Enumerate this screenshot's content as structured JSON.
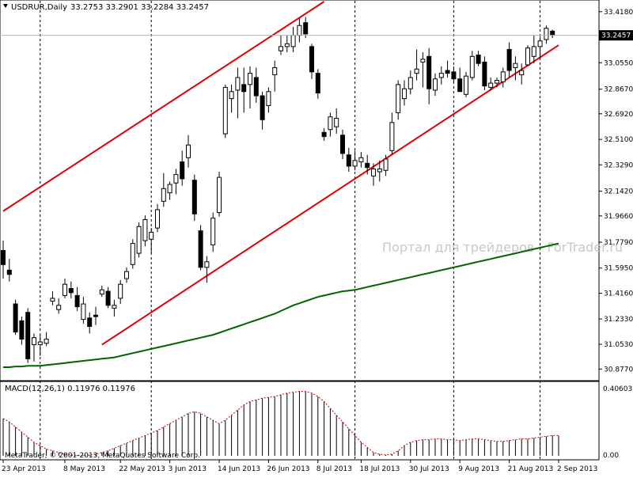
{
  "header": {
    "symbol_label": "USDRUR,Daily",
    "ohlc_label": "33.2753 33.2901 33.2284 33.2457"
  },
  "main_pane": {
    "current_price": "33.2457",
    "price_ticks": [
      "33.4180",
      "33.2457",
      "33.0550",
      "32.8670",
      "32.6920",
      "32.5100",
      "32.3290",
      "32.1420",
      "31.9660",
      "31.7790",
      "31.5950",
      "31.4160",
      "31.2330",
      "31.0530",
      "30.8770"
    ],
    "watermark": "Портал для трейдеров - ForTrader.ru"
  },
  "macd_pane": {
    "label": "MACD(12,26,1) 0.11976 0.11976",
    "ticks": [
      "0.40603",
      "0.00"
    ],
    "copyright": "MetaTrader, © 2001-2013, MetaQuotes Software Corp."
  },
  "time_axis": {
    "labels": [
      "23 Apr 2013",
      "8 May 2013",
      "22 May 2013",
      "3 Jun 2013",
      "14 Jun 2013",
      "26 Jun 2013",
      "8 Jul 2013",
      "18 Jul 2013",
      "30 Jul 2013",
      "9 Aug 2013",
      "21 Aug 2013",
      "2 Sep 2013"
    ]
  },
  "colors": {
    "bull_fill": "#ffffff",
    "bear_fill": "#000000",
    "channel": "#e00000",
    "moving_average": "#006400",
    "macd_hist": "#000000",
    "macd_signal": "#c00000",
    "current_price_box": "#000000"
  },
  "chart_data": {
    "type": "candlestick",
    "symbol": "USDRUR",
    "timeframe": "Daily",
    "ylim": [
      30.8,
      33.49
    ],
    "candles": [
      {
        "o": 31.72,
        "h": 31.79,
        "l": 31.52,
        "c": 31.62
      },
      {
        "o": 31.58,
        "h": 31.66,
        "l": 31.5,
        "c": 31.55
      },
      {
        "o": 31.34,
        "h": 31.37,
        "l": 31.12,
        "c": 31.14
      },
      {
        "o": 31.22,
        "h": 31.25,
        "l": 31.05,
        "c": 31.09
      },
      {
        "o": 31.28,
        "h": 31.31,
        "l": 30.92,
        "c": 30.95
      },
      {
        "o": 31.05,
        "h": 31.13,
        "l": 30.93,
        "c": 31.1
      },
      {
        "o": 31.05,
        "h": 31.12,
        "l": 30.97,
        "c": 31.07
      },
      {
        "o": 31.06,
        "h": 31.14,
        "l": 31.04,
        "c": 31.09
      },
      {
        "o": 31.36,
        "h": 31.43,
        "l": 31.33,
        "c": 31.38
      },
      {
        "o": 31.3,
        "h": 31.38,
        "l": 31.27,
        "c": 31.33
      },
      {
        "o": 31.4,
        "h": 31.52,
        "l": 31.38,
        "c": 31.48
      },
      {
        "o": 31.45,
        "h": 31.5,
        "l": 31.38,
        "c": 31.42
      },
      {
        "o": 31.4,
        "h": 31.46,
        "l": 31.29,
        "c": 31.32
      },
      {
        "o": 31.23,
        "h": 31.39,
        "l": 31.2,
        "c": 31.34
      },
      {
        "o": 31.24,
        "h": 31.28,
        "l": 31.13,
        "c": 31.18
      },
      {
        "o": 31.26,
        "h": 31.32,
        "l": 31.19,
        "c": 31.25
      },
      {
        "o": 31.41,
        "h": 31.47,
        "l": 31.39,
        "c": 31.44
      },
      {
        "o": 31.43,
        "h": 31.46,
        "l": 31.31,
        "c": 31.33
      },
      {
        "o": 31.31,
        "h": 31.37,
        "l": 31.25,
        "c": 31.33
      },
      {
        "o": 31.38,
        "h": 31.51,
        "l": 31.34,
        "c": 31.48
      },
      {
        "o": 31.52,
        "h": 31.6,
        "l": 31.49,
        "c": 31.57
      },
      {
        "o": 31.62,
        "h": 31.8,
        "l": 31.59,
        "c": 31.77
      },
      {
        "o": 31.7,
        "h": 31.92,
        "l": 31.67,
        "c": 31.89
      },
      {
        "o": 31.79,
        "h": 31.97,
        "l": 31.75,
        "c": 31.94
      },
      {
        "o": 31.8,
        "h": 31.88,
        "l": 31.7,
        "c": 31.85
      },
      {
        "o": 31.88,
        "h": 32.05,
        "l": 31.85,
        "c": 32.01
      },
      {
        "o": 32.07,
        "h": 32.27,
        "l": 32.03,
        "c": 32.16
      },
      {
        "o": 32.13,
        "h": 32.21,
        "l": 32.08,
        "c": 32.19
      },
      {
        "o": 32.2,
        "h": 32.3,
        "l": 32.12,
        "c": 32.26
      },
      {
        "o": 32.35,
        "h": 32.43,
        "l": 32.18,
        "c": 32.23
      },
      {
        "o": 32.38,
        "h": 32.54,
        "l": 32.31,
        "c": 32.47
      },
      {
        "o": 32.22,
        "h": 32.26,
        "l": 31.93,
        "c": 31.98
      },
      {
        "o": 31.86,
        "h": 31.9,
        "l": 31.58,
        "c": 31.6
      },
      {
        "o": 31.6,
        "h": 31.68,
        "l": 31.49,
        "c": 31.64
      },
      {
        "o": 31.76,
        "h": 31.99,
        "l": 31.71,
        "c": 31.95
      },
      {
        "o": 31.99,
        "h": 32.28,
        "l": 31.96,
        "c": 32.24
      },
      {
        "o": 32.55,
        "h": 32.9,
        "l": 32.52,
        "c": 32.88
      },
      {
        "o": 32.8,
        "h": 32.9,
        "l": 32.7,
        "c": 32.85
      },
      {
        "o": 32.86,
        "h": 33.02,
        "l": 32.66,
        "c": 32.95
      },
      {
        "o": 32.9,
        "h": 33.02,
        "l": 32.7,
        "c": 32.85
      },
      {
        "o": 32.9,
        "h": 33.03,
        "l": 32.73,
        "c": 32.98
      },
      {
        "o": 32.95,
        "h": 33.02,
        "l": 32.77,
        "c": 32.82
      },
      {
        "o": 32.82,
        "h": 32.85,
        "l": 32.58,
        "c": 32.65
      },
      {
        "o": 32.75,
        "h": 32.88,
        "l": 32.7,
        "c": 32.85
      },
      {
        "o": 32.97,
        "h": 33.07,
        "l": 32.85,
        "c": 33.02
      },
      {
        "o": 33.14,
        "h": 33.25,
        "l": 33.11,
        "c": 33.17
      },
      {
        "o": 33.17,
        "h": 33.25,
        "l": 33.13,
        "c": 33.19
      },
      {
        "o": 33.17,
        "h": 33.31,
        "l": 33.13,
        "c": 33.25
      },
      {
        "o": 33.25,
        "h": 33.37,
        "l": 33.2,
        "c": 33.32
      },
      {
        "o": 33.34,
        "h": 33.38,
        "l": 33.23,
        "c": 33.26
      },
      {
        "o": 33.17,
        "h": 33.19,
        "l": 32.94,
        "c": 32.99
      },
      {
        "o": 32.98,
        "h": 33.01,
        "l": 32.8,
        "c": 32.84
      },
      {
        "o": 32.56,
        "h": 32.59,
        "l": 32.5,
        "c": 32.53
      },
      {
        "o": 32.58,
        "h": 32.7,
        "l": 32.53,
        "c": 32.67
      },
      {
        "o": 32.6,
        "h": 32.73,
        "l": 32.55,
        "c": 32.66
      },
      {
        "o": 32.54,
        "h": 32.58,
        "l": 32.37,
        "c": 32.41
      },
      {
        "o": 32.4,
        "h": 32.45,
        "l": 32.28,
        "c": 32.32
      },
      {
        "o": 32.32,
        "h": 32.43,
        "l": 32.29,
        "c": 32.36
      },
      {
        "o": 32.35,
        "h": 32.42,
        "l": 32.31,
        "c": 32.38
      },
      {
        "o": 32.34,
        "h": 32.4,
        "l": 32.26,
        "c": 32.31
      },
      {
        "o": 32.25,
        "h": 32.34,
        "l": 32.18,
        "c": 32.3
      },
      {
        "o": 32.28,
        "h": 32.36,
        "l": 32.21,
        "c": 32.3
      },
      {
        "o": 32.29,
        "h": 32.4,
        "l": 32.25,
        "c": 32.37
      },
      {
        "o": 32.43,
        "h": 32.7,
        "l": 32.4,
        "c": 32.63
      },
      {
        "o": 32.7,
        "h": 32.93,
        "l": 32.65,
        "c": 32.9
      },
      {
        "o": 32.8,
        "h": 32.93,
        "l": 32.75,
        "c": 32.87
      },
      {
        "o": 32.87,
        "h": 33.0,
        "l": 32.83,
        "c": 32.95
      },
      {
        "o": 32.98,
        "h": 33.15,
        "l": 32.93,
        "c": 33.01
      },
      {
        "o": 33.06,
        "h": 33.13,
        "l": 32.88,
        "c": 33.08
      },
      {
        "o": 33.1,
        "h": 33.16,
        "l": 32.76,
        "c": 32.87
      },
      {
        "o": 32.86,
        "h": 32.98,
        "l": 32.82,
        "c": 32.94
      },
      {
        "o": 32.95,
        "h": 33.03,
        "l": 32.9,
        "c": 32.98
      },
      {
        "o": 33.0,
        "h": 33.07,
        "l": 32.95,
        "c": 32.98
      },
      {
        "o": 32.99,
        "h": 33.03,
        "l": 32.91,
        "c": 32.94
      },
      {
        "o": 32.94,
        "h": 33.02,
        "l": 32.85,
        "c": 32.85
      },
      {
        "o": 32.83,
        "h": 32.99,
        "l": 32.81,
        "c": 32.96
      },
      {
        "o": 32.95,
        "h": 33.14,
        "l": 32.93,
        "c": 33.1
      },
      {
        "o": 33.11,
        "h": 33.14,
        "l": 33.03,
        "c": 33.05
      },
      {
        "o": 33.06,
        "h": 33.1,
        "l": 32.86,
        "c": 32.89
      },
      {
        "o": 32.88,
        "h": 32.95,
        "l": 32.86,
        "c": 32.91
      },
      {
        "o": 32.91,
        "h": 32.95,
        "l": 32.88,
        "c": 32.93
      },
      {
        "o": 32.92,
        "h": 33.02,
        "l": 32.88,
        "c": 32.99
      },
      {
        "o": 33.15,
        "h": 33.2,
        "l": 32.95,
        "c": 33.0
      },
      {
        "o": 33.02,
        "h": 33.1,
        "l": 32.93,
        "c": 33.05
      },
      {
        "o": 32.97,
        "h": 33.05,
        "l": 32.9,
        "c": 33.0
      },
      {
        "o": 33.04,
        "h": 33.18,
        "l": 33.03,
        "c": 33.16
      },
      {
        "o": 33.1,
        "h": 33.25,
        "l": 33.05,
        "c": 33.17
      },
      {
        "o": 33.17,
        "h": 33.24,
        "l": 33.08,
        "c": 33.21
      },
      {
        "o": 33.22,
        "h": 33.32,
        "l": 33.19,
        "c": 33.3
      },
      {
        "o": 33.28,
        "h": 33.29,
        "l": 33.23,
        "c": 33.25
      }
    ],
    "moving_average": [
      30.89,
      30.89,
      30.895,
      30.895,
      30.9,
      30.9,
      30.9,
      30.905,
      30.91,
      30.915,
      30.92,
      30.925,
      30.93,
      30.935,
      30.94,
      30.945,
      30.95,
      30.955,
      30.96,
      30.97,
      30.98,
      30.99,
      31.0,
      31.01,
      31.02,
      31.03,
      31.04,
      31.05,
      31.06,
      31.07,
      31.08,
      31.09,
      31.1,
      31.11,
      31.12,
      31.135,
      31.15,
      31.165,
      31.18,
      31.195,
      31.21,
      31.225,
      31.24,
      31.255,
      31.27,
      31.29,
      31.31,
      31.33,
      31.345,
      31.36,
      31.375,
      31.39,
      31.4,
      31.41,
      31.42,
      31.43,
      31.435,
      31.44,
      31.45,
      31.46,
      31.47,
      31.48,
      31.49,
      31.5,
      31.51,
      31.52,
      31.53,
      31.54,
      31.55,
      31.56,
      31.57,
      31.58,
      31.59,
      31.6,
      31.61,
      31.62,
      31.63,
      31.64,
      31.65,
      31.66,
      31.67,
      31.68,
      31.69,
      31.7,
      31.71,
      31.72,
      31.73,
      31.74,
      31.75,
      31.76,
      31.77
    ],
    "channel_lines": [
      {
        "name": "upper",
        "from": {
          "index": 0,
          "price": 32.0
        },
        "to": {
          "index": 52,
          "price": 33.49
        }
      },
      {
        "name": "lower",
        "from": {
          "index": 16,
          "price": 31.05
        },
        "to": {
          "index": 90,
          "price": 33.18
        }
      }
    ],
    "vertical_markers": [
      6,
      24,
      57,
      73,
      87
    ],
    "macd": {
      "ylim": [
        0.0,
        0.40603
      ],
      "histogram": [
        0.22,
        0.2,
        0.17,
        0.14,
        0.11,
        0.08,
        0.06,
        0.04,
        0.03,
        0.02,
        0.01,
        0.005,
        0.003,
        0.003,
        0.005,
        0.01,
        0.02,
        0.03,
        0.045,
        0.06,
        0.075,
        0.09,
        0.105,
        0.12,
        0.135,
        0.15,
        0.17,
        0.19,
        0.21,
        0.23,
        0.25,
        0.26,
        0.25,
        0.23,
        0.21,
        0.19,
        0.21,
        0.24,
        0.27,
        0.3,
        0.32,
        0.33,
        0.34,
        0.345,
        0.35,
        0.36,
        0.37,
        0.375,
        0.38,
        0.38,
        0.37,
        0.35,
        0.32,
        0.28,
        0.24,
        0.2,
        0.16,
        0.12,
        0.08,
        0.05,
        0.02,
        0.01,
        0.005,
        0.01,
        0.03,
        0.06,
        0.08,
        0.09,
        0.095,
        0.095,
        0.1,
        0.1,
        0.095,
        0.095,
        0.09,
        0.095,
        0.1,
        0.1,
        0.095,
        0.09,
        0.085,
        0.085,
        0.09,
        0.095,
        0.1,
        0.1,
        0.105,
        0.11,
        0.115,
        0.12,
        0.12
      ],
      "signal": [
        0.22,
        0.2,
        0.17,
        0.14,
        0.11,
        0.08,
        0.06,
        0.04,
        0.03,
        0.02,
        0.01,
        0.005,
        0.003,
        0.003,
        0.005,
        0.01,
        0.02,
        0.03,
        0.045,
        0.06,
        0.075,
        0.09,
        0.105,
        0.12,
        0.135,
        0.15,
        0.17,
        0.19,
        0.21,
        0.23,
        0.25,
        0.26,
        0.25,
        0.23,
        0.21,
        0.19,
        0.21,
        0.24,
        0.27,
        0.3,
        0.32,
        0.33,
        0.34,
        0.345,
        0.35,
        0.36,
        0.37,
        0.375,
        0.38,
        0.38,
        0.37,
        0.35,
        0.32,
        0.28,
        0.24,
        0.2,
        0.16,
        0.12,
        0.08,
        0.05,
        0.02,
        0.01,
        0.005,
        0.01,
        0.03,
        0.06,
        0.08,
        0.09,
        0.095,
        0.095,
        0.1,
        0.1,
        0.095,
        0.095,
        0.09,
        0.095,
        0.1,
        0.1,
        0.095,
        0.09,
        0.085,
        0.085,
        0.09,
        0.095,
        0.1,
        0.1,
        0.105,
        0.11,
        0.115,
        0.12,
        0.12
      ]
    }
  }
}
